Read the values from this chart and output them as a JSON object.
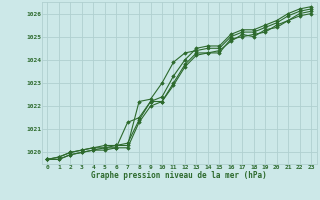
{
  "background_color": "#cce8e8",
  "grid_color": "#b0d0d0",
  "line_color": "#2d6a2d",
  "marker_color": "#2d6a2d",
  "xlabel": "Graphe pression niveau de la mer (hPa)",
  "xlabel_color": "#2d6a2d",
  "tick_color": "#2d6a2d",
  "xlim": [
    -0.5,
    23.5
  ],
  "ylim": [
    1019.5,
    1026.5
  ],
  "yticks": [
    1020,
    1021,
    1022,
    1023,
    1024,
    1025,
    1026
  ],
  "xticks": [
    0,
    1,
    2,
    3,
    4,
    5,
    6,
    7,
    8,
    9,
    10,
    11,
    12,
    13,
    14,
    15,
    16,
    17,
    18,
    19,
    20,
    21,
    22,
    23
  ],
  "series": [
    [
      1019.7,
      1019.7,
      1019.9,
      1020.0,
      1020.1,
      1020.2,
      1020.2,
      1021.3,
      1021.5,
      1022.2,
      1022.2,
      1023.0,
      1023.8,
      1024.3,
      1024.3,
      1024.4,
      1024.8,
      1025.1,
      1025.0,
      1025.3,
      1025.4,
      1025.7,
      1025.9,
      1026.0
    ],
    [
      1019.7,
      1019.7,
      1019.9,
      1020.0,
      1020.1,
      1020.1,
      1020.2,
      1020.2,
      1021.3,
      1022.0,
      1022.2,
      1022.9,
      1023.7,
      1024.2,
      1024.3,
      1024.3,
      1024.9,
      1025.0,
      1025.1,
      1025.2,
      1025.5,
      1025.7,
      1026.0,
      1026.1
    ],
    [
      1019.7,
      1019.8,
      1020.0,
      1020.1,
      1020.2,
      1020.2,
      1020.3,
      1020.3,
      1022.2,
      1022.3,
      1023.0,
      1023.9,
      1024.3,
      1024.4,
      1024.5,
      1024.5,
      1025.0,
      1025.2,
      1025.2,
      1025.4,
      1025.6,
      1025.9,
      1026.1,
      1026.2
    ],
    [
      1019.7,
      1019.8,
      1020.0,
      1020.1,
      1020.2,
      1020.3,
      1020.3,
      1020.4,
      1021.4,
      1022.2,
      1022.4,
      1023.3,
      1024.0,
      1024.5,
      1024.6,
      1024.6,
      1025.1,
      1025.3,
      1025.3,
      1025.5,
      1025.7,
      1026.0,
      1026.2,
      1026.3
    ]
  ],
  "figsize": [
    3.2,
    2.0
  ],
  "dpi": 100
}
